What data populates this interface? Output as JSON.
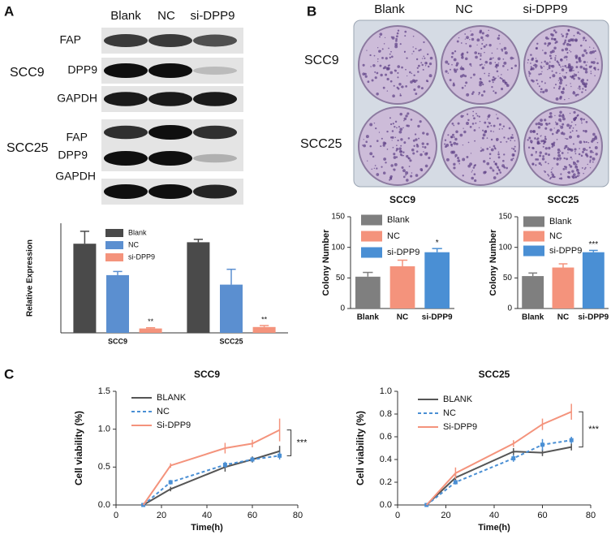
{
  "panels": {
    "a": {
      "label": "A",
      "columns": [
        "Blank",
        "NC",
        "si-DPP9"
      ],
      "groups": [
        {
          "name": "SCC9",
          "rows": [
            "FAP",
            "DPP9",
            "GAPDH"
          ]
        },
        {
          "name": "SCC25",
          "rows": [
            "FAP",
            "DPP9",
            "GAPDH"
          ]
        }
      ]
    },
    "b": {
      "label": "B",
      "columns": [
        "Blank",
        "NC",
        "si-DPP9"
      ],
      "rows": [
        "SCC9",
        "SCC25"
      ]
    },
    "c": {
      "label": "C"
    }
  },
  "chart_data": [
    {
      "type": "bar",
      "ylabel": "Relative Expression",
      "categories": [
        "SCC9",
        "SCC25"
      ],
      "ylim": [
        0,
        1.5
      ],
      "series": [
        {
          "name": "Blank",
          "color": "#4a4a4a",
          "values": [
            1.22,
            1.24
          ],
          "errors": [
            0.17,
            0.04
          ]
        },
        {
          "name": "NC",
          "color": "#5b8fd0",
          "values": [
            0.79,
            0.66
          ],
          "errors": [
            0.05,
            0.21
          ]
        },
        {
          "name": "si-DPP9",
          "color": "#f4937c",
          "values": [
            0.06,
            0.08
          ],
          "errors": [
            0.01,
            0.02
          ],
          "significance": [
            "**",
            "**"
          ]
        }
      ]
    },
    {
      "type": "bar",
      "title": "SCC9",
      "ylabel": "Colony Number",
      "categories": [
        "Blank",
        "NC",
        "si-DPP9"
      ],
      "colors": [
        "#7f7f7f",
        "#f4937c",
        "#4a8fd4"
      ],
      "values": [
        52,
        69,
        92
      ],
      "errors": [
        7,
        10,
        6
      ],
      "significance": [
        null,
        null,
        "*"
      ],
      "ylim": [
        0,
        150
      ],
      "yticks": [
        0,
        50,
        100,
        150
      ]
    },
    {
      "type": "bar",
      "title": "SCC25",
      "ylabel": "Colony Number",
      "categories": [
        "Blank",
        "NC",
        "si-DPP9"
      ],
      "colors": [
        "#7f7f7f",
        "#f4937c",
        "#4a8fd4"
      ],
      "values": [
        53,
        67,
        92
      ],
      "errors": [
        5,
        6,
        3
      ],
      "significance": [
        null,
        null,
        "***"
      ],
      "ylim": [
        0,
        150
      ],
      "yticks": [
        0,
        50,
        100,
        150
      ]
    },
    {
      "type": "line",
      "title": "SCC9",
      "xlabel": "Time(h)",
      "ylabel": "Cell viability (%)",
      "x": [
        12,
        24,
        48,
        60,
        72
      ],
      "xlim": [
        0,
        80
      ],
      "xticks": [
        0,
        20,
        40,
        60,
        80
      ],
      "ylim": [
        0,
        1.5
      ],
      "yticks": [
        {
          "value": 0,
          "label": "0.0"
        },
        0.5,
        {
          "value": 1,
          "label": "1.0"
        },
        1.5
      ],
      "annotation": "***",
      "series": [
        {
          "name": "BLANK",
          "color": "#555555",
          "values": [
            0,
            0.21,
            0.5,
            0.6,
            0.71
          ],
          "errors": [
            0,
            0.03,
            0.06,
            0.04,
            0.07
          ]
        },
        {
          "name": "NC",
          "color": "#4a8fd4",
          "dashed": true,
          "values": [
            0,
            0.3,
            0.53,
            0.6,
            0.65
          ],
          "errors": [
            0,
            0.03,
            0.04,
            0.03,
            0.05
          ]
        },
        {
          "name": "Si-DPP9",
          "color": "#f4937c",
          "values": [
            0,
            0.52,
            0.75,
            0.81,
            0.99
          ],
          "errors": [
            0,
            0.03,
            0.07,
            0.05,
            0.15
          ]
        }
      ]
    },
    {
      "type": "line",
      "title": "SCC25",
      "xlabel": "Time(h)",
      "ylabel": "Cell viability (%)",
      "x": [
        12,
        24,
        48,
        60,
        72
      ],
      "xlim": [
        0,
        80
      ],
      "xticks": [
        0,
        20,
        40,
        60,
        80
      ],
      "ylim": [
        0,
        1
      ],
      "yticks": [
        {
          "value": 0,
          "label": "0.0"
        },
        0.2,
        0.4,
        0.6,
        0.8,
        {
          "value": 1,
          "label": "1.0"
        }
      ],
      "annotation": "***",
      "series": [
        {
          "name": "BLANK",
          "color": "#555555",
          "values": [
            0,
            0.24,
            0.47,
            0.46,
            0.51
          ],
          "errors": [
            0,
            0.03,
            0.03,
            0.03,
            0.03
          ]
        },
        {
          "name": "NC",
          "color": "#4a8fd4",
          "dashed": true,
          "values": [
            0,
            0.2,
            0.41,
            0.53,
            0.57
          ],
          "errors": [
            0,
            0.02,
            0.03,
            0.05,
            0.03
          ]
        },
        {
          "name": "Si-DPP9",
          "color": "#f4937c",
          "values": [
            0,
            0.28,
            0.54,
            0.71,
            0.82
          ],
          "errors": [
            0,
            0.05,
            0.03,
            0.05,
            0.07
          ]
        }
      ]
    }
  ]
}
